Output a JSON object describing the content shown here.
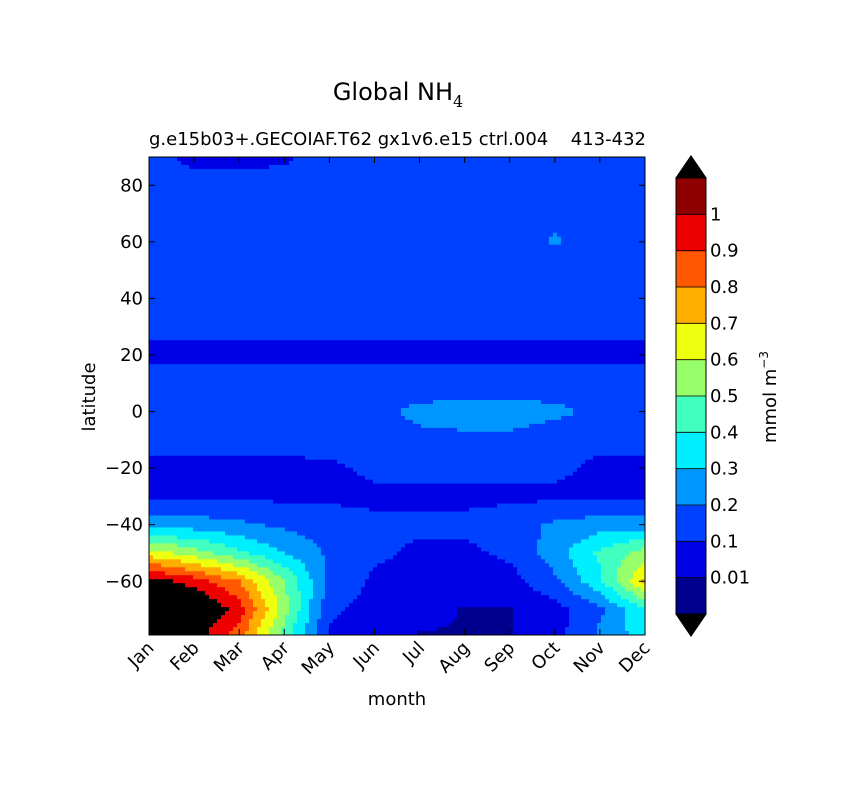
{
  "figure": {
    "title_main": "Global NH",
    "title_sub": "4",
    "subtitle": "g.e15b03+.GECOIAF.T62 gx1v6.e15 ctrl.004",
    "years": "413-432"
  },
  "chart_data": {
    "type": "heatmap",
    "title": "Global NH4",
    "subtitle": "g.e15b03+.GECOIAF.T62 gx1v6.e15 ctrl.004 413-432",
    "xlabel": "month",
    "ylabel": "latitude",
    "x_ticks": [
      "Jan",
      "Feb",
      "Mar",
      "Apr",
      "May",
      "Jun",
      "Jul",
      "Aug",
      "Sep",
      "Oct",
      "Nov",
      "Dec"
    ],
    "y_ticks": [
      80,
      60,
      40,
      20,
      0,
      -20,
      -40,
      -60
    ],
    "ylim": [
      -79,
      90
    ],
    "colorbar": {
      "label": "mmol m",
      "label_exp": "−3",
      "levels": [
        0.01,
        0.1,
        0.2,
        0.3,
        0.4,
        0.5,
        0.6,
        0.7,
        0.8,
        0.9,
        1
      ],
      "tick_labels": [
        "0.01",
        "0.1",
        "0.2",
        "0.3",
        "0.4",
        "0.5",
        "0.6",
        "0.7",
        "0.8",
        "0.9",
        "1"
      ],
      "colors": [
        "#00008f",
        "#0000e6",
        "#0040ff",
        "#0096ff",
        "#00efff",
        "#40ffbf",
        "#96ff6a",
        "#efff10",
        "#ffae00",
        "#ff5800",
        "#ee0000",
        "#8f0000"
      ],
      "extend": "both",
      "under_color": "#000000",
      "over_color": "#000000"
    },
    "field_rows": [
      {
        "lat": 90,
        "v": [
          0.15,
          0.06,
          0.06,
          0.08,
          0.15,
          0.15,
          0.15,
          0.18,
          0.15,
          0.15,
          0.1,
          0.1
        ]
      },
      {
        "lat": 80,
        "v": [
          0.15,
          0.15,
          0.15,
          0.15,
          0.15,
          0.15,
          0.12,
          0.15,
          0.15,
          0.15,
          0.15,
          0.15
        ]
      },
      {
        "lat": 70,
        "v": [
          0.15,
          0.15,
          0.15,
          0.15,
          0.15,
          0.15,
          0.12,
          0.15,
          0.15,
          0.18,
          0.15,
          0.15
        ]
      },
      {
        "lat": 60,
        "v": [
          0.15,
          0.15,
          0.15,
          0.15,
          0.15,
          0.15,
          0.12,
          0.15,
          0.15,
          0.21,
          0.15,
          0.15
        ]
      },
      {
        "lat": 50,
        "v": [
          0.12,
          0.15,
          0.15,
          0.18,
          0.15,
          0.15,
          0.12,
          0.15,
          0.15,
          0.15,
          0.15,
          0.15
        ]
      },
      {
        "lat": 40,
        "v": [
          0.12,
          0.15,
          0.15,
          0.15,
          0.15,
          0.12,
          0.12,
          0.12,
          0.15,
          0.15,
          0.15,
          0.15
        ]
      },
      {
        "lat": 30,
        "v": [
          0.12,
          0.12,
          0.12,
          0.12,
          0.12,
          0.12,
          0.12,
          0.12,
          0.12,
          0.12,
          0.12,
          0.12
        ]
      },
      {
        "lat": 20,
        "v": [
          0.08,
          0.08,
          0.08,
          0.08,
          0.08,
          0.08,
          0.08,
          0.08,
          0.08,
          0.08,
          0.08,
          0.08
        ]
      },
      {
        "lat": 10,
        "v": [
          0.15,
          0.15,
          0.15,
          0.15,
          0.15,
          0.15,
          0.15,
          0.15,
          0.15,
          0.15,
          0.15,
          0.15
        ]
      },
      {
        "lat": 0,
        "v": [
          0.15,
          0.15,
          0.15,
          0.15,
          0.15,
          0.18,
          0.22,
          0.24,
          0.24,
          0.22,
          0.18,
          0.15
        ]
      },
      {
        "lat": -10,
        "v": [
          0.12,
          0.12,
          0.12,
          0.12,
          0.15,
          0.15,
          0.18,
          0.18,
          0.18,
          0.15,
          0.12,
          0.12
        ]
      },
      {
        "lat": -20,
        "v": [
          0.08,
          0.08,
          0.08,
          0.08,
          0.08,
          0.12,
          0.12,
          0.12,
          0.12,
          0.12,
          0.08,
          0.08
        ]
      },
      {
        "lat": -30,
        "v": [
          0.08,
          0.08,
          0.08,
          0.08,
          0.08,
          0.08,
          0.08,
          0.08,
          0.08,
          0.08,
          0.08,
          0.08
        ]
      },
      {
        "lat": -40,
        "v": [
          0.25,
          0.25,
          0.22,
          0.18,
          0.15,
          0.12,
          0.12,
          0.12,
          0.15,
          0.22,
          0.25,
          0.25
        ]
      },
      {
        "lat": -50,
        "v": [
          0.65,
          0.55,
          0.42,
          0.3,
          0.18,
          0.12,
          0.08,
          0.08,
          0.12,
          0.25,
          0.42,
          0.55
        ]
      },
      {
        "lat": -60,
        "v": [
          1.05,
          0.95,
          0.8,
          0.5,
          0.18,
          0.08,
          0.06,
          0.04,
          0.06,
          0.18,
          0.38,
          0.72
        ]
      },
      {
        "lat": -70,
        "v": [
          1.2,
          1.15,
          0.95,
          0.55,
          0.12,
          0.06,
          0.04,
          0.005,
          0.005,
          0.06,
          0.18,
          0.4
        ]
      },
      {
        "lat": -79,
        "v": [
          1.0,
          1.05,
          0.85,
          0.45,
          0.08,
          0.08,
          0.005,
          0.005,
          0.005,
          0.06,
          0.22,
          0.35
        ]
      }
    ]
  }
}
